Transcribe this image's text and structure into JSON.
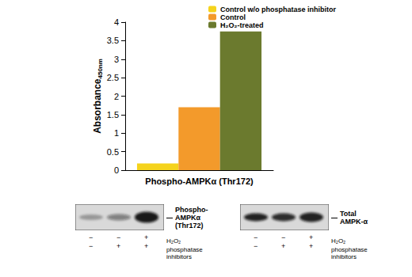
{
  "chart_data": {
    "type": "bar",
    "categories": [
      "Phospho-AMPKα (Thr172)"
    ],
    "y_label": {
      "text": "Absorbance",
      "subscript": "450nm"
    },
    "series": [
      {
        "name": "Control w/o phosphatase inhibitor",
        "color": "#f5d31c",
        "values": [
          0.18
        ]
      },
      {
        "name": "Control",
        "color": "#f39a2b",
        "values": [
          1.7
        ]
      },
      {
        "name": "H₂O₂-treated",
        "color": "#6b7a2e",
        "values": [
          3.75
        ]
      }
    ],
    "ylim": [
      0,
      4
    ],
    "yticks": [
      0,
      0.5,
      1,
      1.5,
      2,
      2.5,
      3,
      3.5,
      4
    ],
    "grid": false,
    "legend": "upper right"
  },
  "blots": [
    {
      "label_lines": [
        "Phospho-",
        "AMPKα",
        "(Thr172)"
      ]
    },
    {
      "label_lines": [
        "Total",
        "AMPK-α"
      ]
    }
  ],
  "conditions": [
    {
      "label": "H₂O₂",
      "signs": [
        "−",
        "−",
        "+"
      ]
    },
    {
      "label": "phosphatase inhibitors",
      "signs": [
        "−",
        "+",
        "+"
      ]
    }
  ]
}
